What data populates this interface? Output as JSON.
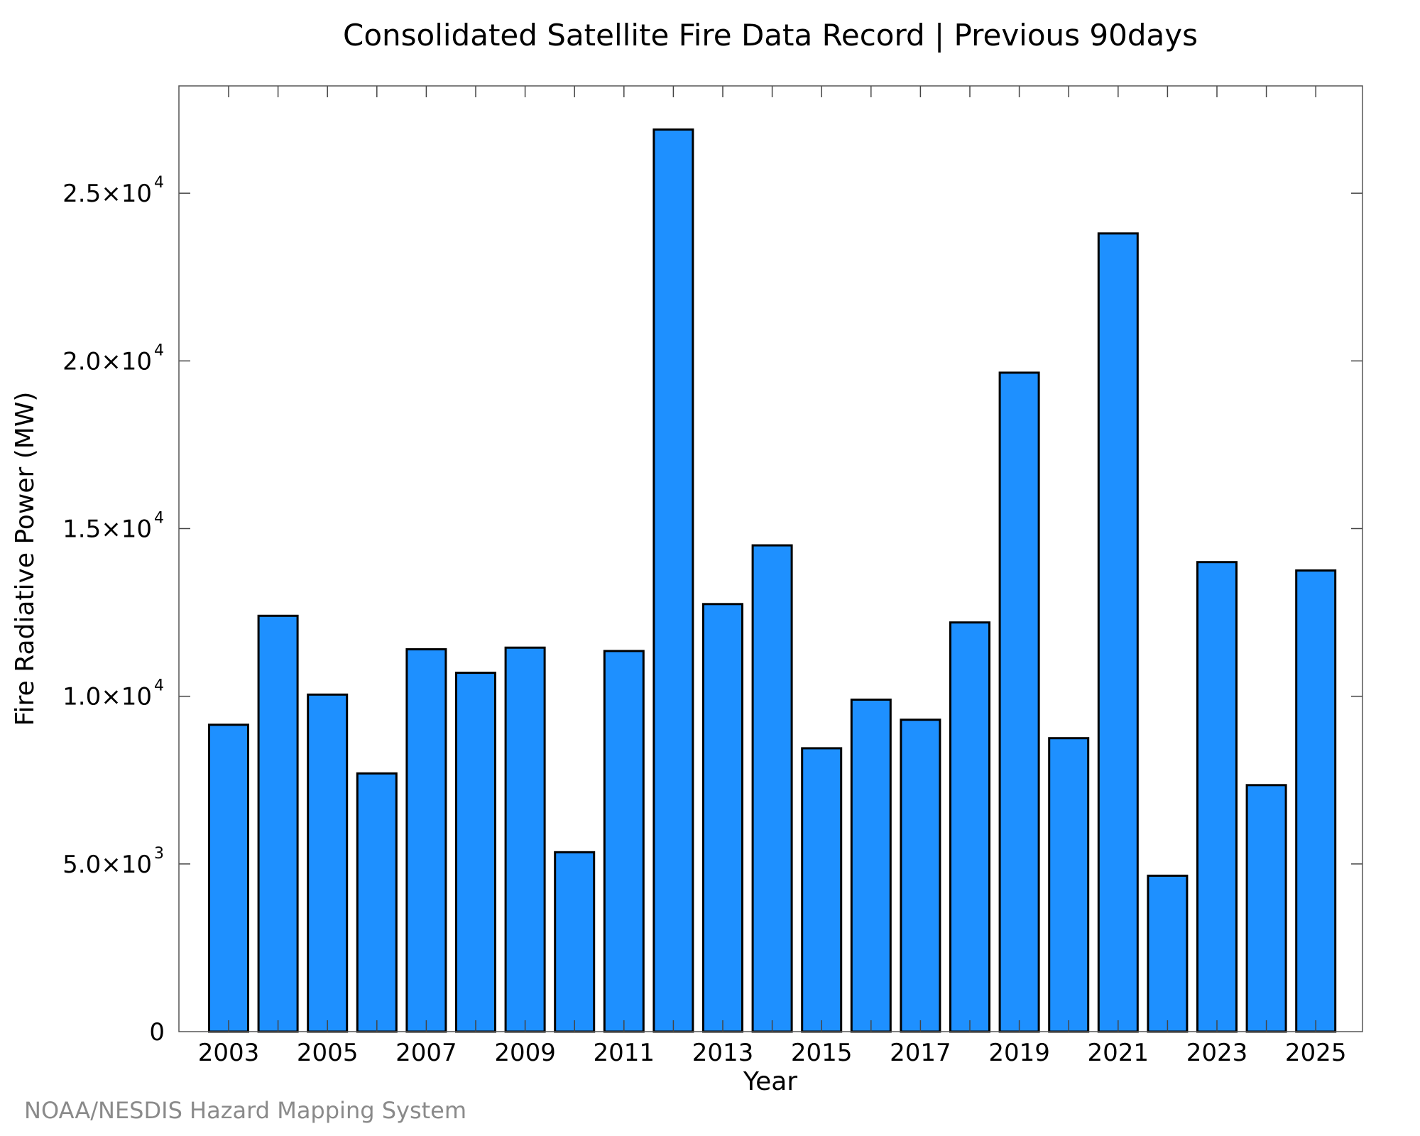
{
  "chart_data": {
    "type": "bar",
    "title": "Consolidated Satellite Fire Data Record | Previous 90days",
    "xlabel": "Year",
    "ylabel": "Fire Radiative Power (MW)",
    "categories": [
      "2003",
      "2004",
      "2005",
      "2006",
      "2007",
      "2008",
      "2009",
      "2010",
      "2011",
      "2012",
      "2013",
      "2014",
      "2015",
      "2016",
      "2017",
      "2018",
      "2019",
      "2020",
      "2021",
      "2022",
      "2023",
      "2024",
      "2025"
    ],
    "values": [
      9150,
      12400,
      10050,
      7700,
      11400,
      10700,
      11450,
      5350,
      11350,
      26900,
      12750,
      14500,
      8450,
      9900,
      9300,
      12200,
      19650,
      8750,
      23800,
      4650,
      14000,
      7350,
      13750
    ],
    "ylim": [
      0,
      28200
    ],
    "yticks": [
      {
        "value": 0,
        "mantissa": "0",
        "exponent": ""
      },
      {
        "value": 5000,
        "mantissa": "5.0×10",
        "exponent": "3"
      },
      {
        "value": 10000,
        "mantissa": "1.0×10",
        "exponent": "4"
      },
      {
        "value": 15000,
        "mantissa": "1.5×10",
        "exponent": "4"
      },
      {
        "value": 20000,
        "mantissa": "2.0×10",
        "exponent": "4"
      },
      {
        "value": 25000,
        "mantissa": "2.5×10",
        "exponent": "4"
      }
    ],
    "xtick_labels": [
      "2003",
      "2005",
      "2007",
      "2009",
      "2011",
      "2013",
      "2015",
      "2017",
      "2019",
      "2021",
      "2023",
      "2025"
    ],
    "grid": false,
    "legend": "none",
    "bar_color": "#1e90ff",
    "bar_edge_color": "#000000"
  },
  "footer": {
    "credit": "NOAA/NESDIS Hazard Mapping System"
  }
}
